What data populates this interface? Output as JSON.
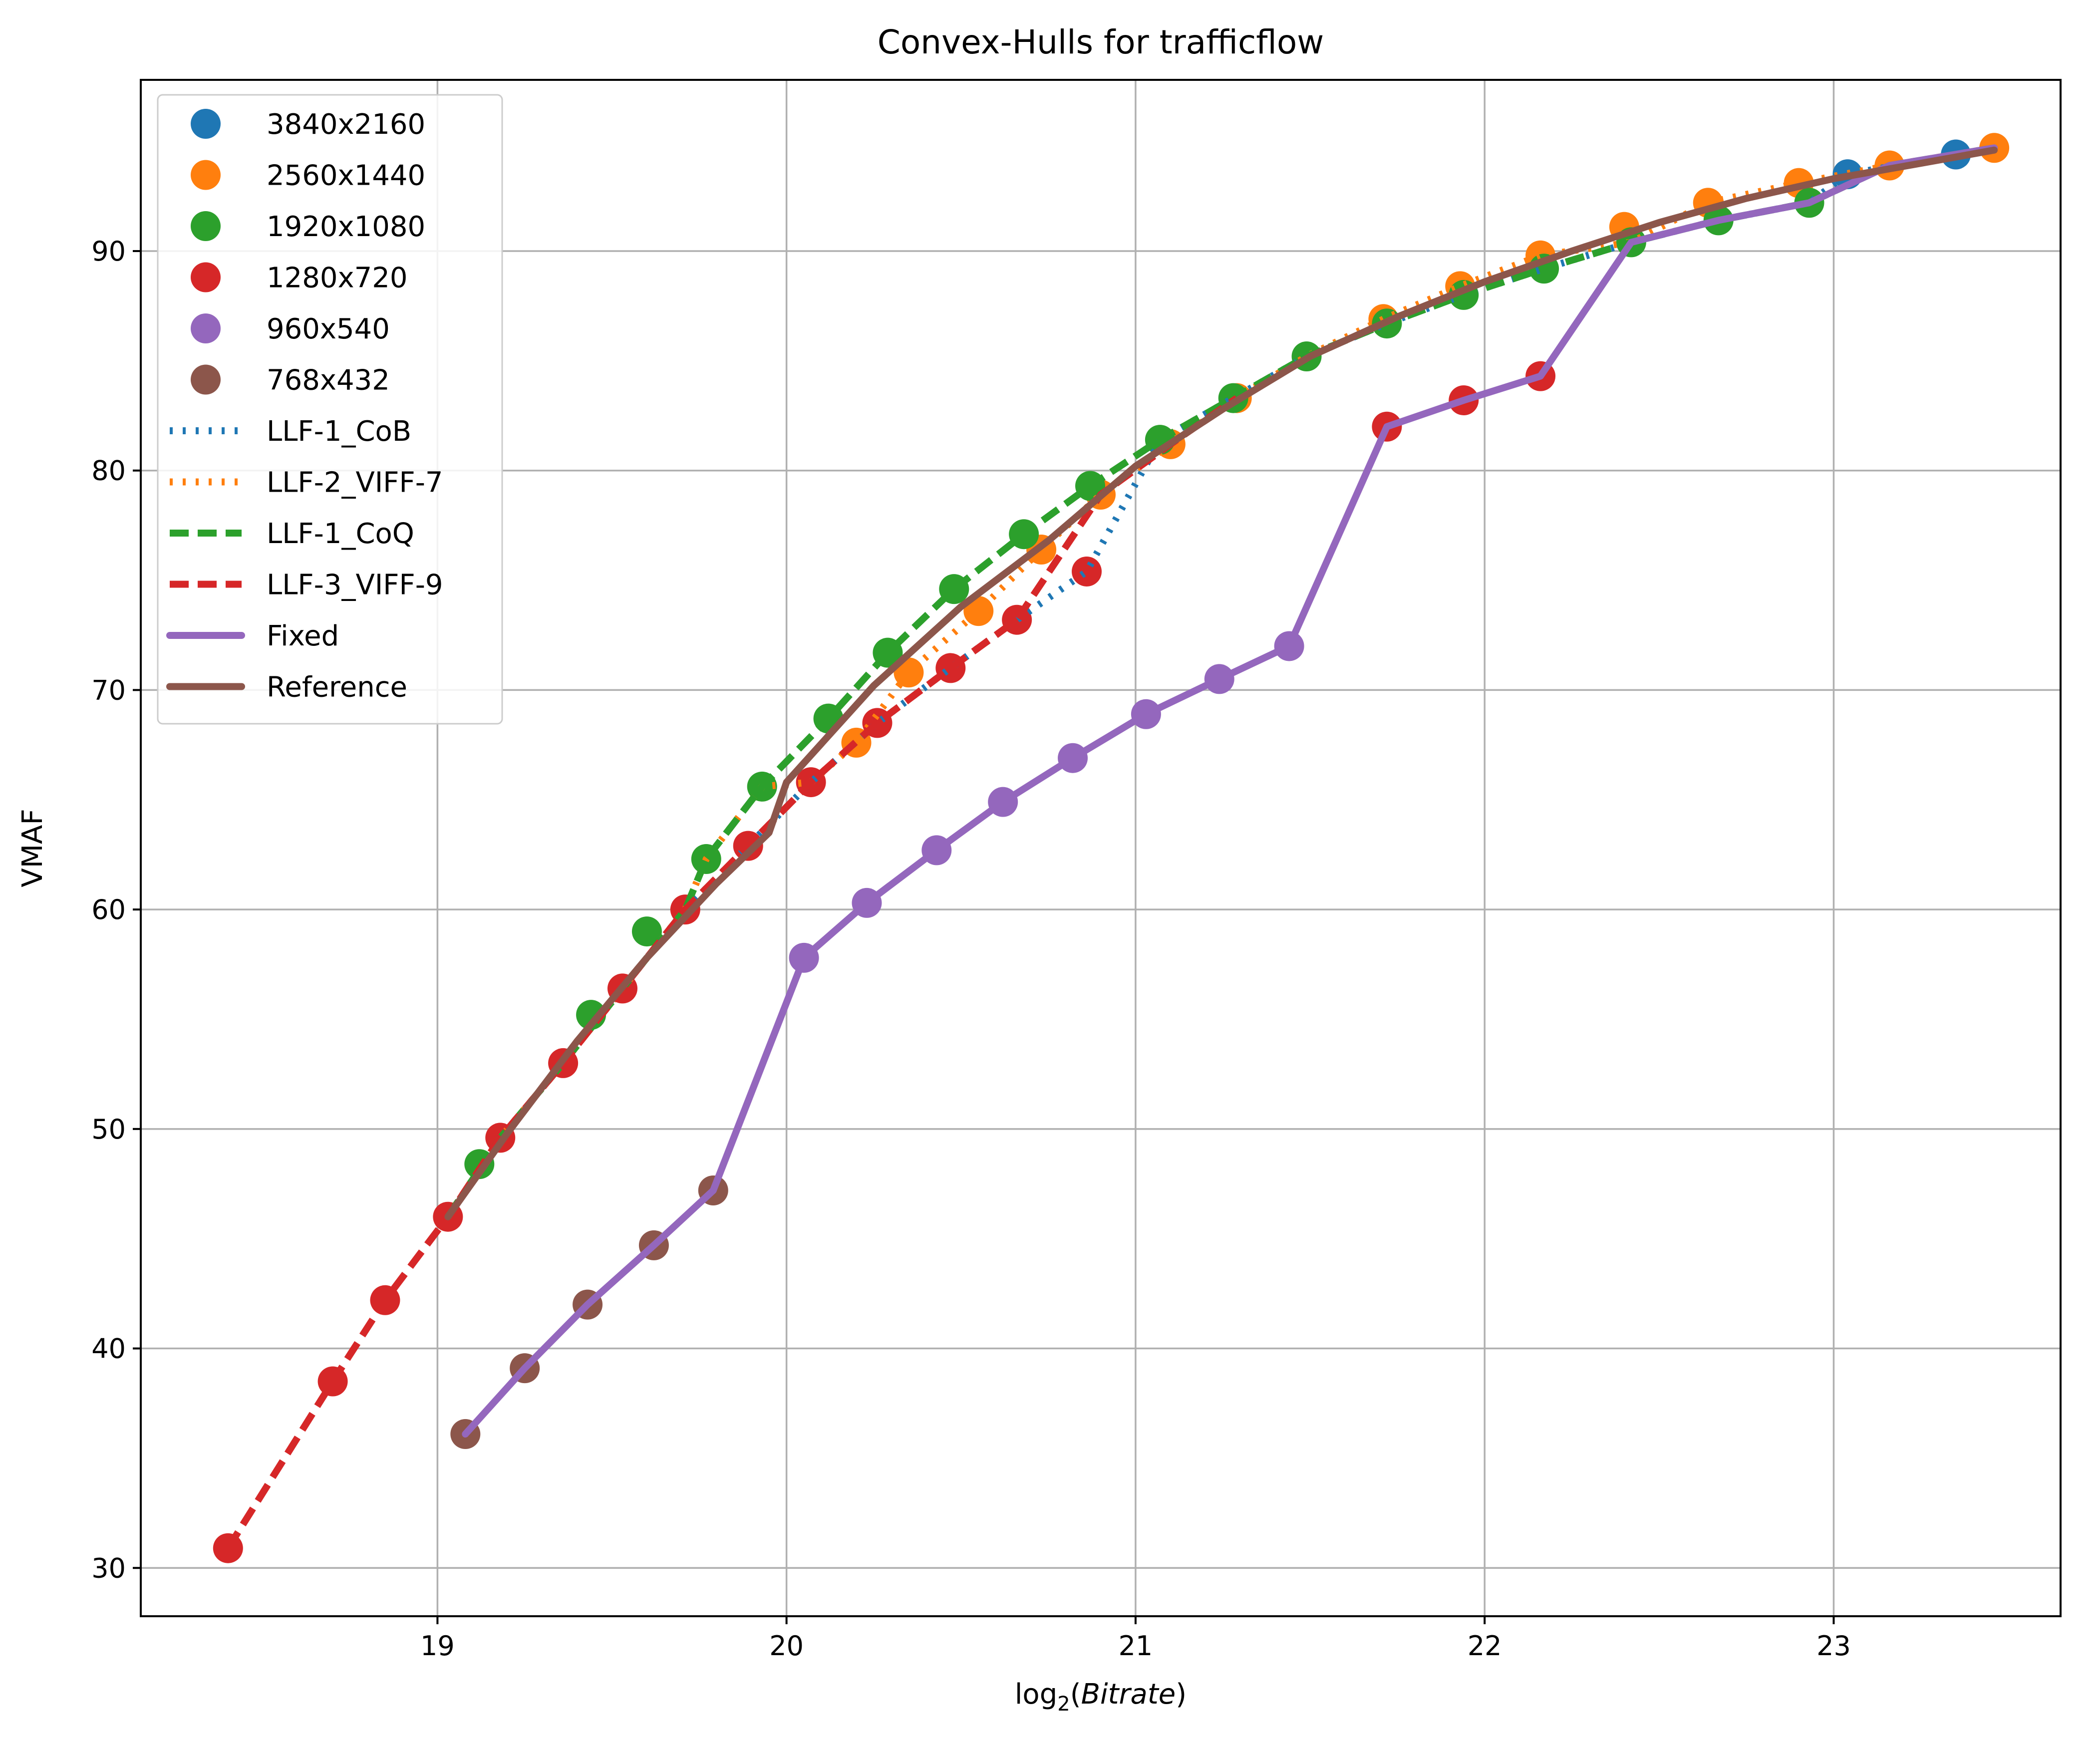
{
  "chart_data": {
    "type": "scatter",
    "title": "Convex-Hulls for trafficflow",
    "xlabel_base": "log",
    "xlabel_sub": "2",
    "xlabel_arg": "Bitrate",
    "ylabel": "VMAF",
    "xlim": [
      18.15,
      23.65
    ],
    "ylim": [
      27.8,
      97.8
    ],
    "xticks": [
      19,
      20,
      21,
      22,
      23
    ],
    "yticks": [
      30,
      40,
      50,
      60,
      70,
      80,
      90
    ],
    "grid": true,
    "legend_position": "upper-left",
    "scatter_series": [
      {
        "name": "3840x2160",
        "color": "#1f77b4",
        "points": [
          [
            23.04,
            93.5
          ],
          [
            23.35,
            94.4
          ]
        ]
      },
      {
        "name": "2560x1440",
        "color": "#ff7f0e",
        "points": [
          [
            20.2,
            67.6
          ],
          [
            20.35,
            70.8
          ],
          [
            20.55,
            73.6
          ],
          [
            20.73,
            76.4
          ],
          [
            20.9,
            78.9
          ],
          [
            21.1,
            81.2
          ],
          [
            21.29,
            83.3
          ],
          [
            21.71,
            86.9
          ],
          [
            21.93,
            88.4
          ],
          [
            22.16,
            89.8
          ],
          [
            22.4,
            91.1
          ],
          [
            22.64,
            92.2
          ],
          [
            22.9,
            93.1
          ],
          [
            23.16,
            93.9
          ],
          [
            23.46,
            94.7
          ]
        ]
      },
      {
        "name": "1920x1080",
        "color": "#2ca02c",
        "points": [
          [
            19.12,
            48.4
          ],
          [
            19.44,
            55.2
          ],
          [
            19.6,
            59.0
          ],
          [
            19.77,
            62.3
          ],
          [
            19.93,
            65.6
          ],
          [
            20.12,
            68.7
          ],
          [
            20.29,
            71.7
          ],
          [
            20.48,
            74.6
          ],
          [
            20.68,
            77.1
          ],
          [
            20.87,
            79.3
          ],
          [
            21.07,
            81.4
          ],
          [
            21.28,
            83.3
          ],
          [
            21.49,
            85.2
          ],
          [
            21.72,
            86.7
          ],
          [
            21.94,
            88.0
          ],
          [
            22.17,
            89.2
          ],
          [
            22.42,
            90.4
          ],
          [
            22.67,
            91.4
          ],
          [
            22.93,
            92.2
          ]
        ]
      },
      {
        "name": "1280x720",
        "color": "#d62728",
        "points": [
          [
            18.4,
            30.9
          ],
          [
            18.7,
            38.5
          ],
          [
            18.85,
            42.2
          ],
          [
            19.03,
            46.0
          ],
          [
            19.18,
            49.6
          ],
          [
            19.36,
            53.0
          ],
          [
            19.53,
            56.4
          ],
          [
            19.71,
            60.0
          ],
          [
            19.89,
            62.9
          ],
          [
            20.07,
            65.8
          ],
          [
            20.26,
            68.5
          ],
          [
            20.47,
            71.0
          ],
          [
            20.66,
            73.2
          ],
          [
            20.86,
            75.4
          ],
          [
            21.72,
            82.0
          ],
          [
            21.94,
            83.2
          ],
          [
            22.16,
            84.3
          ]
        ]
      },
      {
        "name": "960x540",
        "color": "#9467bd",
        "points": [
          [
            20.05,
            57.8
          ],
          [
            20.23,
            60.3
          ],
          [
            20.43,
            62.7
          ],
          [
            20.62,
            64.9
          ],
          [
            20.82,
            66.9
          ],
          [
            21.03,
            68.9
          ],
          [
            21.24,
            70.5
          ],
          [
            21.44,
            72.0
          ]
        ]
      },
      {
        "name": "768x432",
        "color": "#8c564b",
        "points": [
          [
            19.08,
            36.1
          ],
          [
            19.25,
            39.1
          ],
          [
            19.43,
            42.0
          ],
          [
            19.62,
            44.7
          ],
          [
            19.79,
            47.2
          ]
        ]
      }
    ],
    "line_series": [
      {
        "name": "LLF-1_CoB",
        "color": "#1f77b4",
        "style": "dotted",
        "points": [
          [
            19.03,
            46.0
          ],
          [
            19.18,
            49.6
          ],
          [
            19.36,
            53.0
          ],
          [
            19.53,
            56.4
          ],
          [
            19.71,
            60.0
          ],
          [
            19.89,
            62.9
          ],
          [
            20.07,
            65.8
          ],
          [
            20.26,
            68.5
          ],
          [
            20.47,
            71.0
          ],
          [
            20.66,
            73.2
          ],
          [
            20.86,
            75.4
          ],
          [
            21.07,
            81.4
          ],
          [
            21.28,
            83.3
          ],
          [
            21.49,
            85.2
          ],
          [
            21.72,
            86.7
          ],
          [
            21.94,
            88.0
          ],
          [
            22.17,
            89.2
          ],
          [
            22.42,
            90.4
          ],
          [
            22.67,
            91.4
          ],
          [
            22.93,
            92.2
          ],
          [
            23.04,
            93.5
          ],
          [
            23.35,
            94.4
          ]
        ]
      },
      {
        "name": "LLF-2_VIFF-7",
        "color": "#ff7f0e",
        "style": "dotted",
        "points": [
          [
            19.03,
            46.0
          ],
          [
            19.18,
            49.6
          ],
          [
            19.36,
            53.0
          ],
          [
            19.53,
            56.4
          ],
          [
            19.71,
            60.0
          ],
          [
            19.77,
            62.3
          ],
          [
            19.93,
            65.6
          ],
          [
            20.07,
            65.8
          ],
          [
            20.2,
            67.6
          ],
          [
            20.35,
            70.8
          ],
          [
            20.55,
            73.6
          ],
          [
            20.73,
            76.4
          ],
          [
            20.9,
            78.9
          ],
          [
            21.1,
            81.2
          ],
          [
            21.29,
            83.3
          ],
          [
            21.49,
            85.2
          ],
          [
            21.71,
            86.9
          ],
          [
            21.93,
            88.4
          ],
          [
            22.16,
            89.8
          ],
          [
            22.42,
            90.4
          ],
          [
            22.64,
            92.2
          ],
          [
            22.9,
            93.1
          ],
          [
            23.16,
            93.9
          ],
          [
            23.46,
            94.7
          ]
        ]
      },
      {
        "name": "LLF-1_CoQ",
        "color": "#2ca02c",
        "style": "dashed",
        "points": [
          [
            19.03,
            46.0
          ],
          [
            19.18,
            49.6
          ],
          [
            19.36,
            53.0
          ],
          [
            19.53,
            56.4
          ],
          [
            19.71,
            60.0
          ],
          [
            19.77,
            62.3
          ],
          [
            19.93,
            65.6
          ],
          [
            20.12,
            68.7
          ],
          [
            20.29,
            71.7
          ],
          [
            20.48,
            74.6
          ],
          [
            20.68,
            77.1
          ],
          [
            20.87,
            79.3
          ],
          [
            21.07,
            81.4
          ],
          [
            21.28,
            83.3
          ],
          [
            21.49,
            85.2
          ],
          [
            21.72,
            86.7
          ],
          [
            21.94,
            88.0
          ],
          [
            22.17,
            89.2
          ],
          [
            22.42,
            90.4
          ],
          [
            22.67,
            91.4
          ],
          [
            22.93,
            92.2
          ],
          [
            23.16,
            93.9
          ],
          [
            23.46,
            94.7
          ]
        ]
      },
      {
        "name": "LLF-3_VIFF-9",
        "color": "#d62728",
        "style": "dashed",
        "points": [
          [
            18.4,
            30.9
          ],
          [
            18.7,
            38.5
          ],
          [
            18.85,
            42.2
          ],
          [
            19.03,
            46.0
          ],
          [
            19.18,
            49.6
          ],
          [
            19.36,
            53.0
          ],
          [
            19.53,
            56.4
          ],
          [
            19.71,
            60.0
          ],
          [
            19.89,
            62.9
          ],
          [
            20.07,
            65.8
          ],
          [
            20.26,
            68.5
          ],
          [
            20.47,
            71.0
          ],
          [
            20.66,
            73.2
          ],
          [
            20.9,
            78.9
          ],
          [
            21.1,
            81.2
          ],
          [
            21.29,
            83.3
          ]
        ]
      },
      {
        "name": "Fixed",
        "color": "#9467bd",
        "style": "solid",
        "points": [
          [
            19.08,
            36.1
          ],
          [
            19.25,
            39.1
          ],
          [
            19.43,
            42.0
          ],
          [
            19.62,
            44.7
          ],
          [
            19.79,
            47.2
          ],
          [
            20.05,
            57.8
          ],
          [
            20.23,
            60.3
          ],
          [
            20.43,
            62.7
          ],
          [
            20.62,
            64.9
          ],
          [
            20.82,
            66.9
          ],
          [
            21.03,
            68.9
          ],
          [
            21.24,
            70.5
          ],
          [
            21.44,
            72.0
          ],
          [
            21.72,
            82.0
          ],
          [
            21.94,
            83.2
          ],
          [
            22.16,
            84.3
          ],
          [
            22.42,
            90.4
          ],
          [
            22.67,
            91.4
          ],
          [
            22.93,
            92.2
          ],
          [
            23.16,
            93.9
          ],
          [
            23.46,
            94.7
          ]
        ]
      },
      {
        "name": "Reference",
        "color": "#8c564b",
        "style": "solid",
        "points": [
          [
            19.03,
            46.0
          ],
          [
            19.2,
            49.8
          ],
          [
            19.4,
            54.0
          ],
          [
            19.6,
            57.8
          ],
          [
            19.8,
            61.2
          ],
          [
            19.95,
            63.5
          ],
          [
            20.0,
            65.8
          ],
          [
            20.25,
            70.2
          ],
          [
            20.5,
            73.8
          ],
          [
            20.75,
            76.8
          ],
          [
            21.0,
            80.2
          ],
          [
            21.25,
            82.8
          ],
          [
            21.5,
            85.2
          ],
          [
            21.75,
            87.0
          ],
          [
            22.0,
            88.6
          ],
          [
            22.25,
            90.0
          ],
          [
            22.5,
            91.3
          ],
          [
            22.75,
            92.4
          ],
          [
            23.0,
            93.3
          ],
          [
            23.25,
            94.0
          ],
          [
            23.46,
            94.6
          ]
        ]
      }
    ]
  }
}
